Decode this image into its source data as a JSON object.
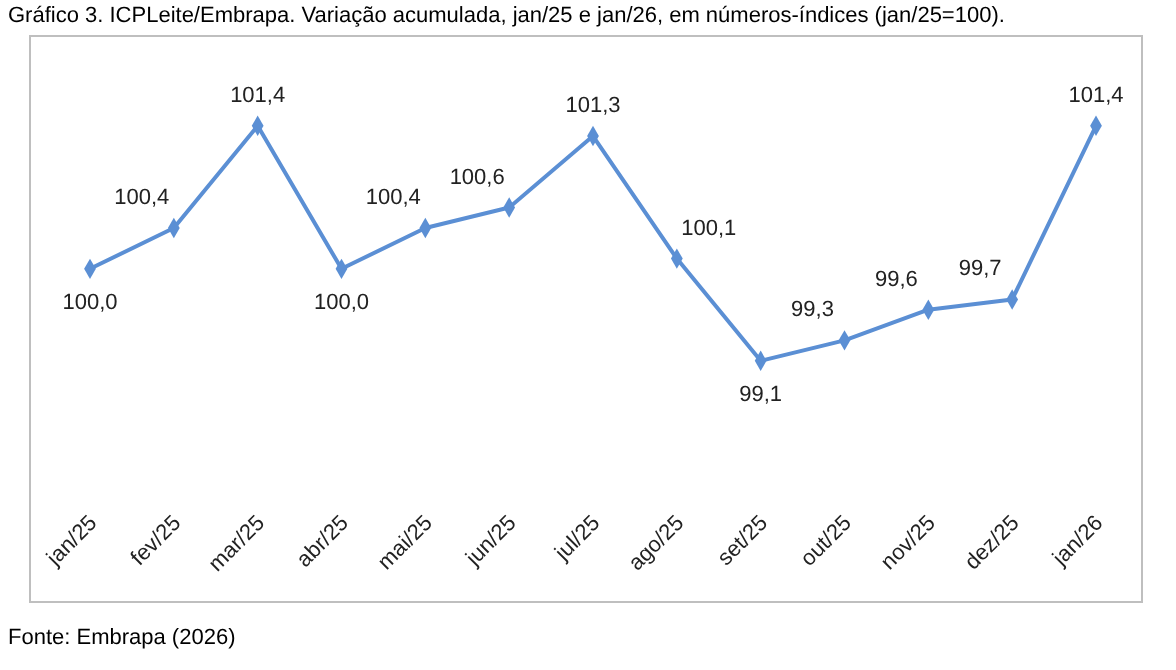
{
  "chart_data": {
    "type": "line",
    "title": "Gráfico 3. ICPLeite/Embrapa. Variação acumulada, jan/25 e jan/26, em números-índices (jan/25=100).",
    "categories": [
      "jan/25",
      "fev/25",
      "mar/25",
      "abr/25",
      "mai/25",
      "jun/25",
      "jul/25",
      "ago/25",
      "set/25",
      "out/25",
      "nov/25",
      "dez/25",
      "jan/26"
    ],
    "series": [
      {
        "color": "#5b8fd4",
        "values": [
          100.0,
          100.4,
          101.4,
          100.0,
          100.4,
          100.6,
          101.3,
          100.1,
          99.1,
          99.3,
          99.6,
          99.7,
          101.4
        ],
        "value_labels": [
          "100,0",
          "100,4",
          "101,4",
          "100,0",
          "100,4",
          "100,6",
          "101,3",
          "100,1",
          "99,1",
          "99,3",
          "99,6",
          "99,7",
          "101,4"
        ]
      }
    ],
    "marker": "diamond",
    "annotations": [
      "Fonte: Embrapa (2026)"
    ]
  }
}
